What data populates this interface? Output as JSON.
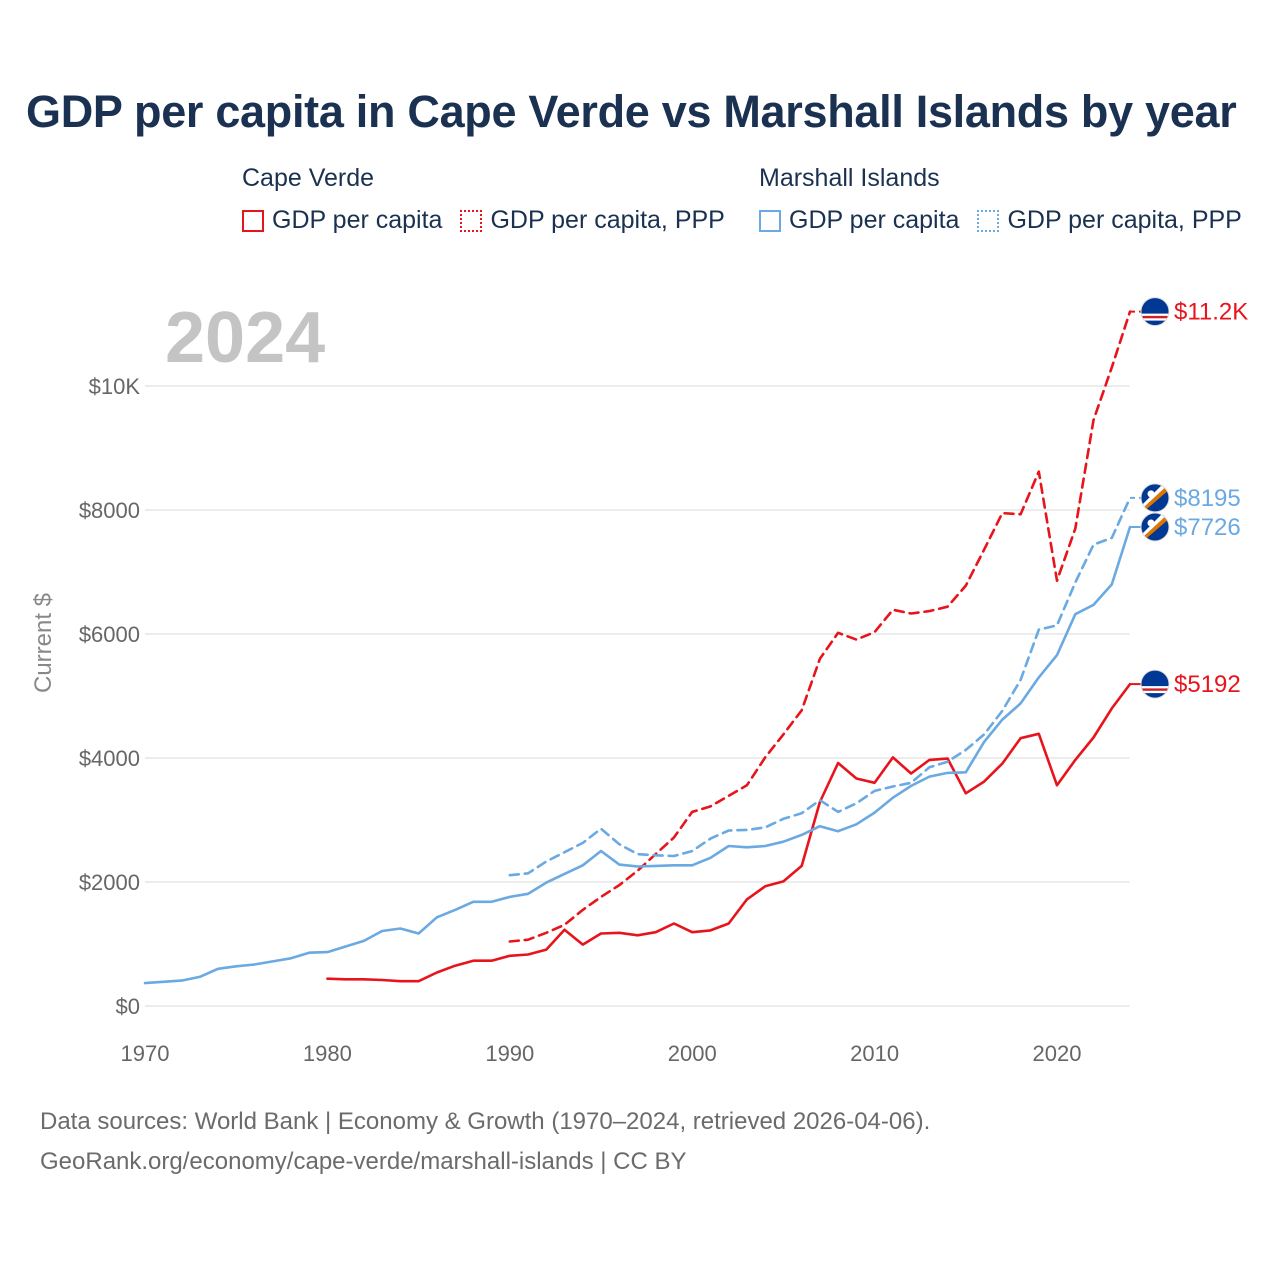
{
  "title": "GDP per capita in Cape Verde vs Marshall Islands by year",
  "legend": {
    "groups": [
      {
        "country": "Cape Verde",
        "items": [
          "GDP per capita",
          "GDP per capita, PPP"
        ]
      },
      {
        "country": "Marshall Islands",
        "items": [
          "GDP per capita",
          "GDP per capita, PPP"
        ]
      }
    ]
  },
  "footer": {
    "line1": "Data sources: World Bank | Economy & Growth (1970–2024, retrieved 2026-04-06).",
    "line2": "GeoRank.org/economy/cape-verde/marshall-islands | CC BY"
  },
  "colors": {
    "cape_verde": "#e8141c",
    "marshall_islands": "#6aa9e2",
    "title": "#1a3151"
  },
  "chart_data": {
    "type": "line",
    "title": "GDP per capita in Cape Verde vs Marshall Islands by year",
    "year_watermark": "2024",
    "xlabel": "",
    "ylabel": "Current $",
    "xlim": [
      1970,
      2024
    ],
    "ylim": [
      0,
      11500
    ],
    "x_ticks": [
      1970,
      1980,
      1990,
      2000,
      2010,
      2020
    ],
    "y_ticks": [
      0,
      2000,
      4000,
      6000,
      8000,
      10000
    ],
    "y_tick_labels": [
      "$0",
      "$2000",
      "$4000",
      "$6000",
      "$8000",
      "$10K"
    ],
    "grid": true,
    "series": [
      {
        "name": "Cape Verde GDP per capita",
        "country": "Cape Verde",
        "style": "solid",
        "color": "#e8141c",
        "end_label": "$5192",
        "flag": "cape-verde-flag-icon",
        "x": [
          1980,
          1981,
          1982,
          1983,
          1984,
          1985,
          1986,
          1987,
          1988,
          1989,
          1990,
          1991,
          1992,
          1993,
          1994,
          1995,
          1996,
          1997,
          1998,
          1999,
          2000,
          2001,
          2002,
          2003,
          2004,
          2005,
          2006,
          2007,
          2008,
          2009,
          2010,
          2011,
          2012,
          2013,
          2014,
          2015,
          2016,
          2017,
          2018,
          2019,
          2020,
          2021,
          2022,
          2023,
          2024
        ],
        "values": [
          440,
          430,
          430,
          420,
          400,
          400,
          540,
          650,
          730,
          730,
          810,
          830,
          910,
          1230,
          990,
          1170,
          1180,
          1140,
          1190,
          1330,
          1190,
          1220,
          1330,
          1720,
          1930,
          2010,
          2260,
          3290,
          3920,
          3670,
          3600,
          4010,
          3750,
          3970,
          3990,
          3430,
          3620,
          3910,
          4320,
          4390,
          3560,
          3970,
          4330,
          4800,
          5192
        ]
      },
      {
        "name": "Cape Verde GDP per capita, PPP",
        "country": "Cape Verde",
        "style": "dashed",
        "color": "#e8141c",
        "end_label": "$11.2K",
        "flag": "cape-verde-flag-icon",
        "x": [
          1990,
          1991,
          1992,
          1993,
          1994,
          1995,
          1996,
          1997,
          1998,
          1999,
          2000,
          2001,
          2002,
          2003,
          2004,
          2005,
          2006,
          2007,
          2008,
          2009,
          2010,
          2011,
          2012,
          2013,
          2014,
          2015,
          2016,
          2017,
          2018,
          2019,
          2020,
          2021,
          2022,
          2023,
          2024
        ],
        "values": [
          1040,
          1070,
          1180,
          1310,
          1550,
          1760,
          1950,
          2180,
          2450,
          2720,
          3130,
          3220,
          3390,
          3560,
          4010,
          4380,
          4770,
          5600,
          6020,
          5910,
          6030,
          6390,
          6330,
          6370,
          6440,
          6780,
          7360,
          7950,
          7930,
          8620,
          6860,
          7700,
          9450,
          10300,
          11200
        ]
      },
      {
        "name": "Marshall Islands GDP per capita",
        "country": "Marshall Islands",
        "style": "solid",
        "color": "#6aa9e2",
        "end_label": "$7726",
        "flag": "marshall-islands-flag-icon",
        "x": [
          1970,
          1971,
          1972,
          1973,
          1974,
          1975,
          1976,
          1977,
          1978,
          1979,
          1980,
          1981,
          1982,
          1983,
          1984,
          1985,
          1986,
          1987,
          1988,
          1989,
          1990,
          1991,
          1992,
          1993,
          1994,
          1995,
          1996,
          1997,
          1998,
          1999,
          2000,
          2001,
          2002,
          2003,
          2004,
          2005,
          2006,
          2007,
          2008,
          2009,
          2010,
          2011,
          2012,
          2013,
          2014,
          2015,
          2016,
          2017,
          2018,
          2019,
          2020,
          2021,
          2022,
          2023,
          2024
        ],
        "values": [
          370,
          390,
          410,
          470,
          600,
          640,
          670,
          720,
          770,
          860,
          870,
          960,
          1050,
          1210,
          1250,
          1170,
          1430,
          1550,
          1680,
          1680,
          1760,
          1810,
          1990,
          2130,
          2270,
          2500,
          2280,
          2250,
          2260,
          2270,
          2270,
          2390,
          2580,
          2560,
          2580,
          2650,
          2760,
          2900,
          2820,
          2930,
          3120,
          3360,
          3550,
          3700,
          3760,
          3770,
          4260,
          4620,
          4880,
          5300,
          5660,
          6320,
          6470,
          6800,
          7726
        ]
      },
      {
        "name": "Marshall Islands GDP per capita, PPP",
        "country": "Marshall Islands",
        "style": "dashed",
        "color": "#6aa9e2",
        "end_label": "$8195",
        "flag": "marshall-islands-flag-icon",
        "x": [
          1990,
          1991,
          1992,
          1993,
          1994,
          1995,
          1996,
          1997,
          1998,
          1999,
          2000,
          2001,
          2002,
          2003,
          2004,
          2005,
          2006,
          2007,
          2008,
          2009,
          2010,
          2011,
          2012,
          2013,
          2014,
          2015,
          2016,
          2017,
          2018,
          2019,
          2020,
          2021,
          2022,
          2023,
          2024
        ],
        "values": [
          2110,
          2140,
          2330,
          2480,
          2630,
          2860,
          2610,
          2450,
          2430,
          2420,
          2500,
          2700,
          2830,
          2840,
          2880,
          3020,
          3110,
          3320,
          3130,
          3270,
          3470,
          3540,
          3600,
          3850,
          3940,
          4130,
          4380,
          4760,
          5260,
          6070,
          6140,
          6830,
          7440,
          7550,
          8195
        ]
      }
    ]
  }
}
